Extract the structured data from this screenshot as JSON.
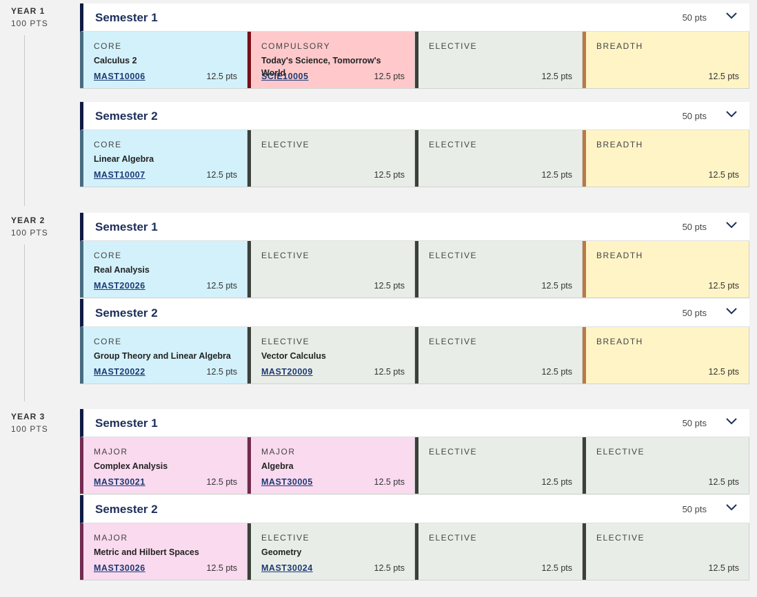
{
  "years": [
    {
      "label": "YEAR 1",
      "points": "100 PTS",
      "semesters": [
        {
          "title": "Semester 1",
          "points": "50 pts",
          "subjects": [
            {
              "type": "CORE",
              "name": "Calculus 2",
              "code": "MAST10006",
              "points": "12.5 pts"
            },
            {
              "type": "COMPULSORY",
              "name": "Today's Science, Tomorrow's World",
              "code": "SCIE10005",
              "points": "12.5 pts"
            },
            {
              "type": "ELECTIVE",
              "name": "",
              "code": "",
              "points": "12.5 pts"
            },
            {
              "type": "BREADTH",
              "name": "",
              "code": "",
              "points": "12.5 pts"
            }
          ]
        },
        {
          "title": "Semester 2",
          "points": "50 pts",
          "subjects": [
            {
              "type": "CORE",
              "name": "Linear Algebra",
              "code": "MAST10007",
              "points": "12.5 pts"
            },
            {
              "type": "ELECTIVE",
              "name": "",
              "code": "",
              "points": "12.5 pts"
            },
            {
              "type": "ELECTIVE",
              "name": "",
              "code": "",
              "points": "12.5 pts"
            },
            {
              "type": "BREADTH",
              "name": "",
              "code": "",
              "points": "12.5 pts"
            }
          ]
        }
      ]
    },
    {
      "label": "YEAR 2",
      "points": "100 PTS",
      "semesters": [
        {
          "title": "Semester 1",
          "points": "50 pts",
          "subjects": [
            {
              "type": "CORE",
              "name": "Real Analysis",
              "code": "MAST20026",
              "points": "12.5 pts"
            },
            {
              "type": "ELECTIVE",
              "name": "",
              "code": "",
              "points": "12.5 pts"
            },
            {
              "type": "ELECTIVE",
              "name": "",
              "code": "",
              "points": "12.5 pts"
            },
            {
              "type": "BREADTH",
              "name": "",
              "code": "",
              "points": "12.5 pts"
            }
          ]
        },
        {
          "title": "Semester 2",
          "points": "50 pts",
          "subjects": [
            {
              "type": "CORE",
              "name": "Group Theory and Linear Algebra",
              "code": "MAST20022",
              "points": "12.5 pts"
            },
            {
              "type": "ELECTIVE",
              "name": "Vector Calculus",
              "code": "MAST20009",
              "points": "12.5 pts"
            },
            {
              "type": "ELECTIVE",
              "name": "",
              "code": "",
              "points": "12.5 pts"
            },
            {
              "type": "BREADTH",
              "name": "",
              "code": "",
              "points": "12.5 pts"
            }
          ]
        }
      ]
    },
    {
      "label": "YEAR 3",
      "points": "100 PTS",
      "semesters": [
        {
          "title": "Semester 1",
          "points": "50 pts",
          "subjects": [
            {
              "type": "MAJOR",
              "name": "Complex Analysis",
              "code": "MAST30021",
              "points": "12.5 pts"
            },
            {
              "type": "MAJOR",
              "name": "Algebra",
              "code": "MAST30005",
              "points": "12.5 pts"
            },
            {
              "type": "ELECTIVE",
              "name": "",
              "code": "",
              "points": "12.5 pts"
            },
            {
              "type": "ELECTIVE",
              "name": "",
              "code": "",
              "points": "12.5 pts"
            }
          ]
        },
        {
          "title": "Semester 2",
          "points": "50 pts",
          "subjects": [
            {
              "type": "MAJOR",
              "name": "Metric and Hilbert Spaces",
              "code": "MAST30026",
              "points": "12.5 pts"
            },
            {
              "type": "ELECTIVE",
              "name": "Geometry",
              "code": "MAST30024",
              "points": "12.5 pts"
            },
            {
              "type": "ELECTIVE",
              "name": "",
              "code": "",
              "points": "12.5 pts"
            },
            {
              "type": "ELECTIVE",
              "name": "",
              "code": "",
              "points": "12.5 pts"
            }
          ]
        }
      ]
    }
  ],
  "icons": {
    "expand": "chevron-down-icon"
  },
  "colors": {
    "core": "#d3f1fb",
    "compulsory": "#ffc9cb",
    "elective": "#e9ede8",
    "breadth": "#fff4c6",
    "major": "#fadaef",
    "accent": "#0f1b45"
  }
}
